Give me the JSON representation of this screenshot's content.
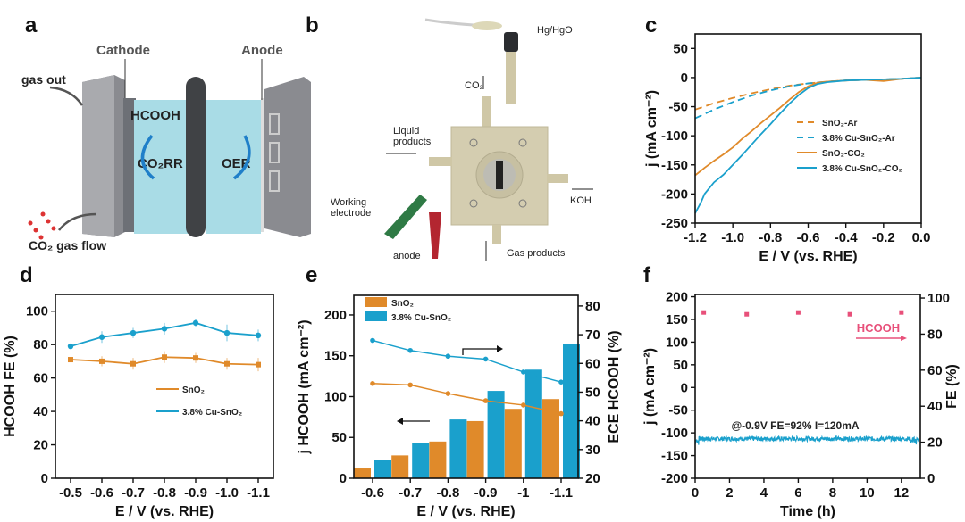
{
  "panel_labels": [
    "a",
    "b",
    "c",
    "d",
    "e",
    "f"
  ],
  "panel_a": {
    "cathode": "Cathode",
    "anode": "Anode",
    "gas_out": "gas out",
    "hcooh": "HCOOH",
    "co2rr": "CO₂RR",
    "oer": "OER",
    "co2_gas_flow": "CO₂ gas flow"
  },
  "panel_b": {
    "hg_hgo": "Hg/HgO",
    "co2": "CO₂",
    "liquid_products_1": "Liquid",
    "liquid_products_2": "products",
    "working_electrode_1": "Working",
    "working_electrode_2": "electrode",
    "anode": "anode",
    "koh": "KOH",
    "gas_products": "Gas products"
  },
  "colors": {
    "orange": "#E08A2A",
    "blue": "#1AA0CC",
    "pink": "#E8507A",
    "cyan_legend": "#2AA7D0"
  },
  "chart_data": [
    {
      "id": "c",
      "type": "line",
      "xlabel": "E / V (vs. RHE)",
      "ylabel": "j (mA cm⁻²)",
      "xlim": [
        -1.2,
        0.0
      ],
      "ylim": [
        -250,
        75
      ],
      "xticks": [
        -1.2,
        -1.0,
        -0.8,
        -0.6,
        -0.4,
        -0.2,
        0.0
      ],
      "xtick_labels": [
        "-1.2",
        "-1.0",
        "-0.8",
        "-0.6",
        "-0.4",
        "-0.2",
        "0.0"
      ],
      "yticks": [
        -250,
        -200,
        -150,
        -100,
        -50,
        0,
        50
      ],
      "ytick_labels": [
        "-250",
        "-200",
        "-150",
        "-100",
        "-50",
        "0",
        "50"
      ],
      "legend_position": "center-right",
      "series": [
        {
          "name": "SnO₂-Ar",
          "style": "dashed",
          "color": "#E08A2A",
          "x": [
            -1.2,
            -1.1,
            -1.0,
            -0.9,
            -0.8,
            -0.7,
            -0.6,
            -0.5,
            -0.4,
            -0.3,
            -0.2,
            -0.1,
            0.0
          ],
          "y": [
            -55,
            -44,
            -35,
            -27,
            -20,
            -14,
            -10,
            -7,
            -5,
            -4,
            -3,
            -2,
            0
          ]
        },
        {
          "name": "3.8% Cu-SnO₂-Ar",
          "style": "dashed",
          "color": "#1AA0CC",
          "x": [
            -1.2,
            -1.1,
            -1.0,
            -0.9,
            -0.8,
            -0.7,
            -0.6,
            -0.5,
            -0.4,
            -0.3,
            -0.2,
            -0.1,
            0.0
          ],
          "y": [
            -70,
            -55,
            -42,
            -31,
            -22,
            -15,
            -10,
            -7,
            -5,
            -4,
            -3,
            -2,
            0
          ]
        },
        {
          "name": "SnO₂-CO₂",
          "style": "solid",
          "color": "#E08A2A",
          "x": [
            -1.2,
            -1.15,
            -1.1,
            -1.05,
            -1.0,
            -0.95,
            -0.9,
            -0.85,
            -0.8,
            -0.75,
            -0.7,
            -0.65,
            -0.6,
            -0.55,
            -0.5,
            -0.4,
            -0.3,
            -0.2,
            -0.1,
            0.0
          ],
          "y": [
            -168,
            -155,
            -143,
            -132,
            -120,
            -105,
            -92,
            -78,
            -65,
            -52,
            -38,
            -25,
            -15,
            -9,
            -7,
            -5,
            -4,
            -6,
            -2,
            0
          ]
        },
        {
          "name": "3.8% Cu-SnO₂-CO₂",
          "style": "solid",
          "color": "#1AA0CC",
          "x": [
            -1.2,
            -1.17,
            -1.15,
            -1.1,
            -1.05,
            -1.0,
            -0.95,
            -0.9,
            -0.85,
            -0.8,
            -0.75,
            -0.7,
            -0.65,
            -0.6,
            -0.55,
            -0.5,
            -0.4,
            -0.3,
            -0.2,
            -0.1,
            0.0
          ],
          "y": [
            -233,
            -215,
            -200,
            -180,
            -167,
            -150,
            -133,
            -115,
            -97,
            -80,
            -62,
            -45,
            -30,
            -18,
            -11,
            -8,
            -5,
            -4,
            -3,
            -2,
            0
          ]
        }
      ]
    },
    {
      "id": "d",
      "type": "line",
      "xlabel": "E / V (vs. RHE)",
      "ylabel": "HCOOH FE (%)",
      "categories": [
        "-0.5",
        "-0.6",
        "-0.7",
        "-0.8",
        "-0.9",
        "-1.0",
        "-1.1"
      ],
      "ylim": [
        0,
        110
      ],
      "yticks": [
        0,
        20,
        40,
        60,
        80,
        100
      ],
      "ytick_labels": [
        "0",
        "20",
        "40",
        "60",
        "80",
        "100"
      ],
      "legend_position": "center-right",
      "series": [
        {
          "name": "SnO₂",
          "color": "#E08A2A",
          "values": [
            71,
            70,
            68.5,
            72.5,
            72,
            68.5,
            68
          ],
          "errors": [
            1.5,
            3,
            3.5,
            3.5,
            3,
            3.5,
            4
          ]
        },
        {
          "name": "3.8% Cu-SnO₂",
          "color": "#1AA0CC",
          "values": [
            79,
            84.5,
            87,
            89.5,
            93,
            87,
            85.5
          ],
          "errors": [
            1,
            3.5,
            3,
            3.5,
            2.5,
            5,
            3.5
          ]
        }
      ]
    },
    {
      "id": "e",
      "type": "bar",
      "xlabel": "E / V (vs. RHE)",
      "ylabel": "j HCOOH (mA cm⁻²)",
      "ylabel_right": "ECE HCOOH (%)",
      "categories": [
        "-0.6",
        "-0.7",
        "-0.8",
        "-0.9",
        "-1",
        "-1.1"
      ],
      "ylim": [
        0,
        224
      ],
      "ylim_right": [
        20,
        83.7
      ],
      "yticks": [
        0,
        50,
        100,
        150,
        200
      ],
      "ytick_labels": [
        "0",
        "50",
        "100",
        "150",
        "200"
      ],
      "yticks_right": [
        20,
        30,
        40,
        50,
        60,
        70,
        80
      ],
      "ytick_labels_right": [
        "20",
        "30",
        "40",
        "50",
        "60",
        "70",
        "80"
      ],
      "legend_position": "top-left",
      "series": [
        {
          "name": "SnO₂",
          "color": "#E08A2A",
          "values": [
            12,
            28,
            45,
            70,
            85,
            97
          ]
        },
        {
          "name": "3.8% Cu-SnO₂",
          "color": "#1AA0CC",
          "values": [
            22,
            43,
            72,
            107,
            133,
            165
          ]
        }
      ],
      "ece_series": [
        {
          "name": "SnO₂ ECE",
          "color": "#E08A2A",
          "values": [
            53,
            52.5,
            49.5,
            47,
            45.5,
            42.5
          ]
        },
        {
          "name": "3.8% Cu-SnO₂ ECE",
          "color": "#1AA0CC",
          "values": [
            68,
            64.5,
            62.5,
            61.5,
            57,
            53.5
          ]
        }
      ]
    },
    {
      "id": "f",
      "type": "scatter",
      "xlabel": "Time (h)",
      "ylabel": "j (mA cm⁻²)",
      "ylabel_right": "FE (%)",
      "xlim": [
        0,
        13.1
      ],
      "ylim": [
        -200,
        205
      ],
      "ylim_right": [
        0,
        102
      ],
      "xticks": [
        0,
        2,
        4,
        6,
        8,
        10,
        12
      ],
      "xtick_labels": [
        "0",
        "2",
        "4",
        "6",
        "8",
        "10",
        "12"
      ],
      "yticks": [
        -200,
        -150,
        -100,
        -50,
        0,
        50,
        100,
        150,
        200
      ],
      "ytick_labels": [
        "-200",
        "-150",
        "-100",
        "-50",
        "0",
        "50",
        "100",
        "150",
        "200"
      ],
      "yticks_right": [
        0,
        20,
        40,
        60,
        80,
        100
      ],
      "ytick_labels_right": [
        "0",
        "20",
        "40",
        "60",
        "80",
        "100"
      ],
      "annotation": "@-0.9V FE=92% I=120mA",
      "fe_label": "HCOOH",
      "current": {
        "name": "j",
        "color": "#1AA0CC",
        "mean": -113,
        "noise": 5,
        "t_end": 13
      },
      "fe": {
        "name": "HCOOH FE",
        "color": "#E8507A",
        "x": [
          0.5,
          3,
          6,
          9,
          12
        ],
        "y": [
          92,
          91,
          92,
          91,
          92
        ]
      }
    }
  ]
}
